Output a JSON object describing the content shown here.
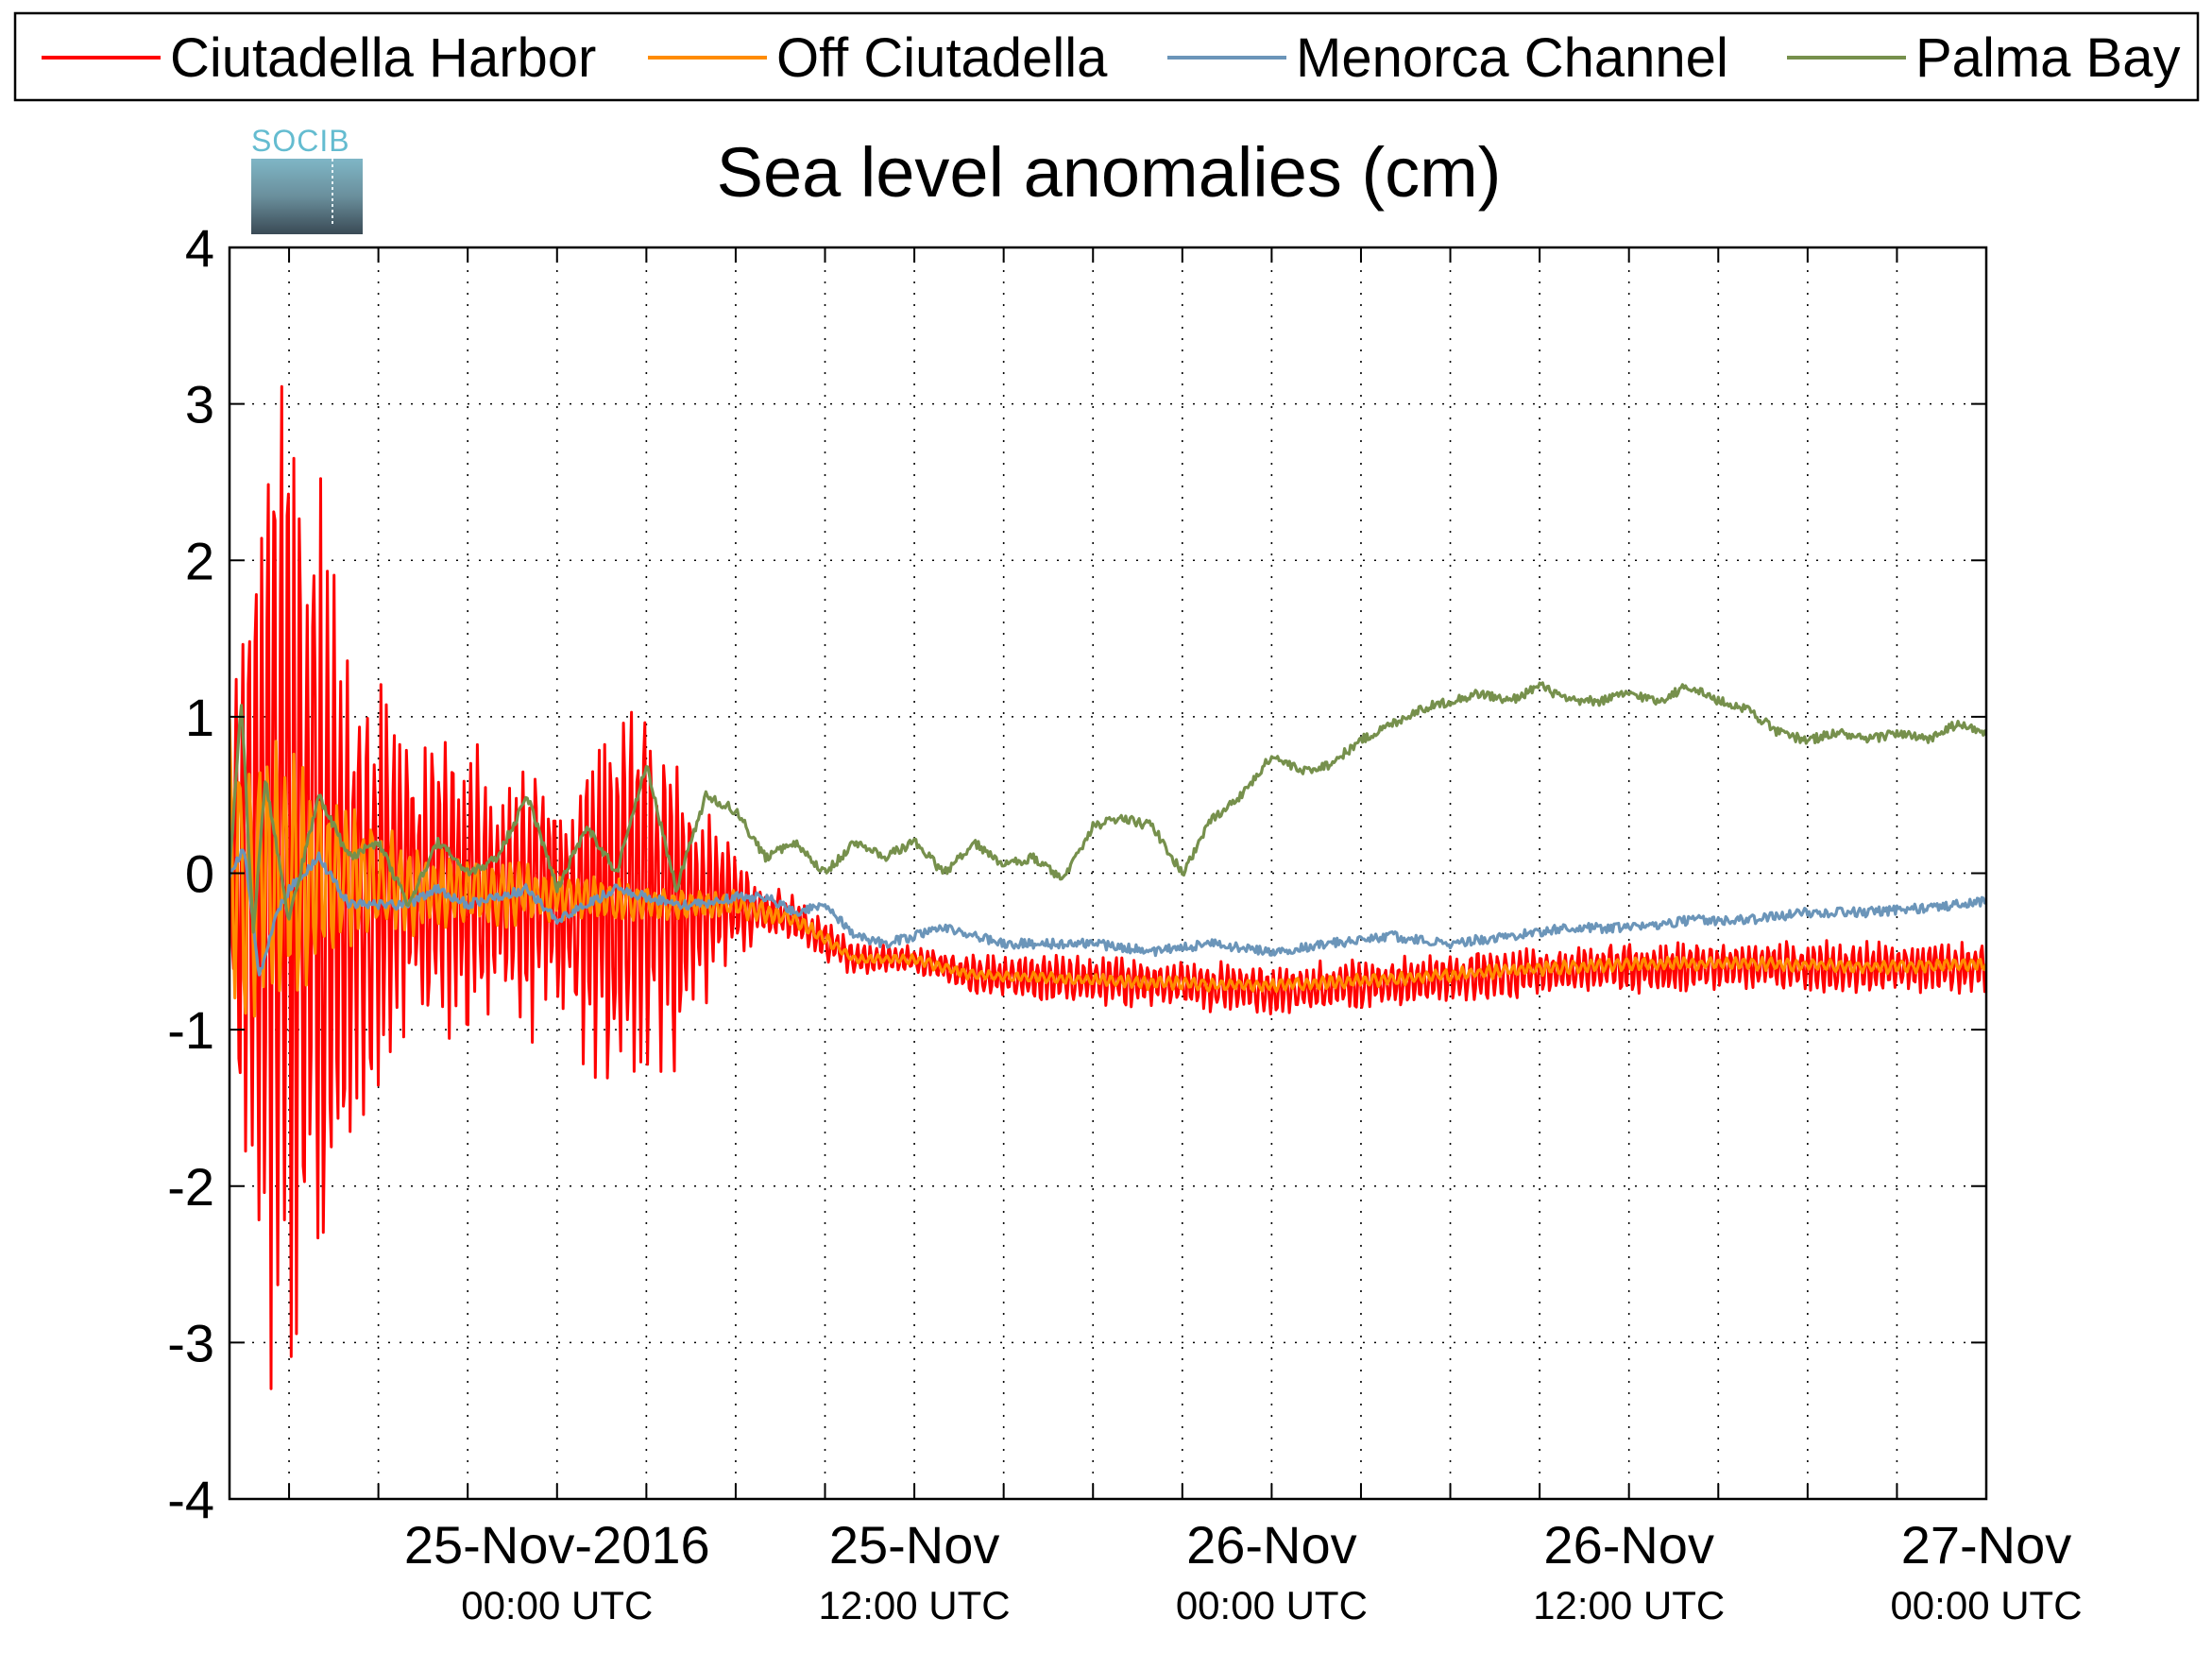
{
  "chart_data": {
    "type": "line",
    "title": "Sea level anomalies (cm)",
    "logo_text": "SOCIB",
    "ylim": [
      -4,
      4
    ],
    "y_ticks": [
      4,
      3,
      2,
      1,
      0,
      -1,
      -2,
      -3,
      -4
    ],
    "x_range_hours": [
      -11,
      48
    ],
    "x_labels": [
      {
        "main": "25-Nov-2016",
        "sub": "00:00 UTC"
      },
      {
        "main": "25-Nov",
        "sub": "12:00 UTC"
      },
      {
        "main": "26-Nov",
        "sub": "00:00 UTC"
      },
      {
        "main": "26-Nov",
        "sub": "12:00 UTC"
      },
      {
        "main": "27-Nov",
        "sub": "00:00 UTC"
      }
    ],
    "grid": true,
    "legend": "top",
    "series": [
      {
        "name": "Ciutadella Harbor",
        "color": "#ff0000",
        "envelope_x": [
          -11,
          -10,
          -9,
          -8,
          -7,
          -6,
          -5,
          -4,
          -3,
          -2,
          -1,
          0,
          1,
          2,
          3,
          4,
          5,
          6,
          7,
          8,
          9,
          10,
          12,
          14,
          16,
          18,
          20,
          22,
          24,
          26,
          30,
          34,
          38,
          42,
          46,
          48
        ],
        "envelope_amp": [
          0.8,
          2.6,
          3.4,
          2.6,
          1.6,
          1.2,
          1.0,
          0.8,
          1.0,
          0.7,
          0.9,
          0.6,
          1.1,
          1.3,
          1.2,
          1.0,
          0.6,
          0.3,
          0.15,
          0.15,
          0.12,
          0.1,
          0.08,
          0.12,
          0.15,
          0.15,
          0.15,
          0.15,
          0.15,
          0.15,
          0.15,
          0.15,
          0.15,
          0.15,
          0.15,
          0.15
        ],
        "base_x": [
          -11,
          0,
          4,
          6,
          8,
          10,
          12,
          14,
          20,
          24,
          28,
          32,
          36,
          40,
          44,
          48
        ],
        "base_y": [
          0.0,
          -0.15,
          -0.2,
          -0.2,
          -0.3,
          -0.55,
          -0.55,
          -0.65,
          -0.7,
          -0.75,
          -0.7,
          -0.65,
          -0.6,
          -0.6,
          -0.6,
          -0.6
        ]
      },
      {
        "name": "Off Ciutadella",
        "color": "#ff8c00",
        "envelope_x": [
          -11,
          -10,
          -8,
          -6,
          -4,
          -2,
          0,
          2,
          4,
          6,
          8,
          10,
          20,
          48
        ],
        "envelope_amp": [
          0.9,
          1.0,
          0.6,
          0.35,
          0.25,
          0.2,
          0.15,
          0.15,
          0.1,
          0.08,
          0.05,
          0.03,
          0.04,
          0.04
        ],
        "base_x": [
          -11,
          0,
          4,
          6,
          8,
          10,
          12,
          14,
          20,
          24,
          28,
          32,
          36,
          40,
          44,
          48
        ],
        "base_y": [
          0.0,
          -0.15,
          -0.2,
          -0.2,
          -0.3,
          -0.55,
          -0.55,
          -0.65,
          -0.7,
          -0.72,
          -0.68,
          -0.62,
          -0.58,
          -0.58,
          -0.6,
          -0.58
        ]
      },
      {
        "name": "Menorca Channel",
        "color": "#6b95b9",
        "points_x": [
          -11,
          -10.5,
          -10,
          -9.5,
          -9,
          -8,
          -7,
          -6,
          -5,
          -4,
          -3,
          -2,
          -1,
          0,
          1,
          2,
          3,
          4,
          5,
          6,
          7,
          8,
          9,
          10,
          11,
          12,
          13,
          14,
          15,
          16,
          18,
          20,
          22,
          24,
          26,
          28,
          30,
          32,
          34,
          36,
          38,
          40,
          42,
          44,
          46,
          48
        ],
        "points_y": [
          0.0,
          0.15,
          -0.65,
          -0.3,
          -0.1,
          0.1,
          -0.2,
          -0.2,
          -0.2,
          -0.1,
          -0.2,
          -0.15,
          -0.1,
          -0.3,
          -0.2,
          -0.1,
          -0.15,
          -0.2,
          -0.2,
          -0.15,
          -0.15,
          -0.25,
          -0.2,
          -0.4,
          -0.45,
          -0.4,
          -0.35,
          -0.4,
          -0.45,
          -0.45,
          -0.45,
          -0.5,
          -0.45,
          -0.5,
          -0.45,
          -0.4,
          -0.45,
          -0.4,
          -0.35,
          -0.35,
          -0.3,
          -0.3,
          -0.25,
          -0.25,
          -0.22,
          -0.18
        ]
      },
      {
        "name": "Palma Bay",
        "color": "#76904c",
        "points_x": [
          -11,
          -10.6,
          -10.2,
          -9.8,
          -9,
          -8,
          -7,
          -6,
          -5,
          -4,
          -3,
          -2,
          -1,
          0,
          1,
          2,
          3,
          4,
          5,
          6,
          7,
          8,
          9,
          10,
          11,
          12,
          13,
          14,
          15,
          16,
          17,
          18,
          19,
          20,
          21,
          22,
          23,
          24,
          25,
          26,
          27,
          28,
          29,
          30,
          31,
          32,
          33,
          34,
          35,
          36,
          37,
          38,
          39,
          40,
          41,
          42,
          43,
          44,
          45,
          46,
          47,
          48
        ],
        "points_y": [
          0.0,
          1.1,
          -0.4,
          0.6,
          -0.3,
          0.5,
          0.1,
          0.2,
          -0.2,
          0.2,
          0.0,
          0.1,
          0.5,
          -0.1,
          0.3,
          0.0,
          0.7,
          -0.1,
          0.5,
          0.4,
          0.1,
          0.2,
          0.0,
          0.2,
          0.1,
          0.2,
          0.0,
          0.2,
          0.05,
          0.1,
          -0.05,
          0.3,
          0.35,
          0.3,
          0.0,
          0.35,
          0.5,
          0.75,
          0.65,
          0.7,
          0.85,
          0.95,
          1.05,
          1.1,
          1.15,
          1.1,
          1.2,
          1.1,
          1.1,
          1.15,
          1.1,
          1.2,
          1.1,
          1.05,
          0.9,
          0.85,
          0.9,
          0.85,
          0.9,
          0.85,
          0.95,
          0.9
        ]
      }
    ]
  }
}
